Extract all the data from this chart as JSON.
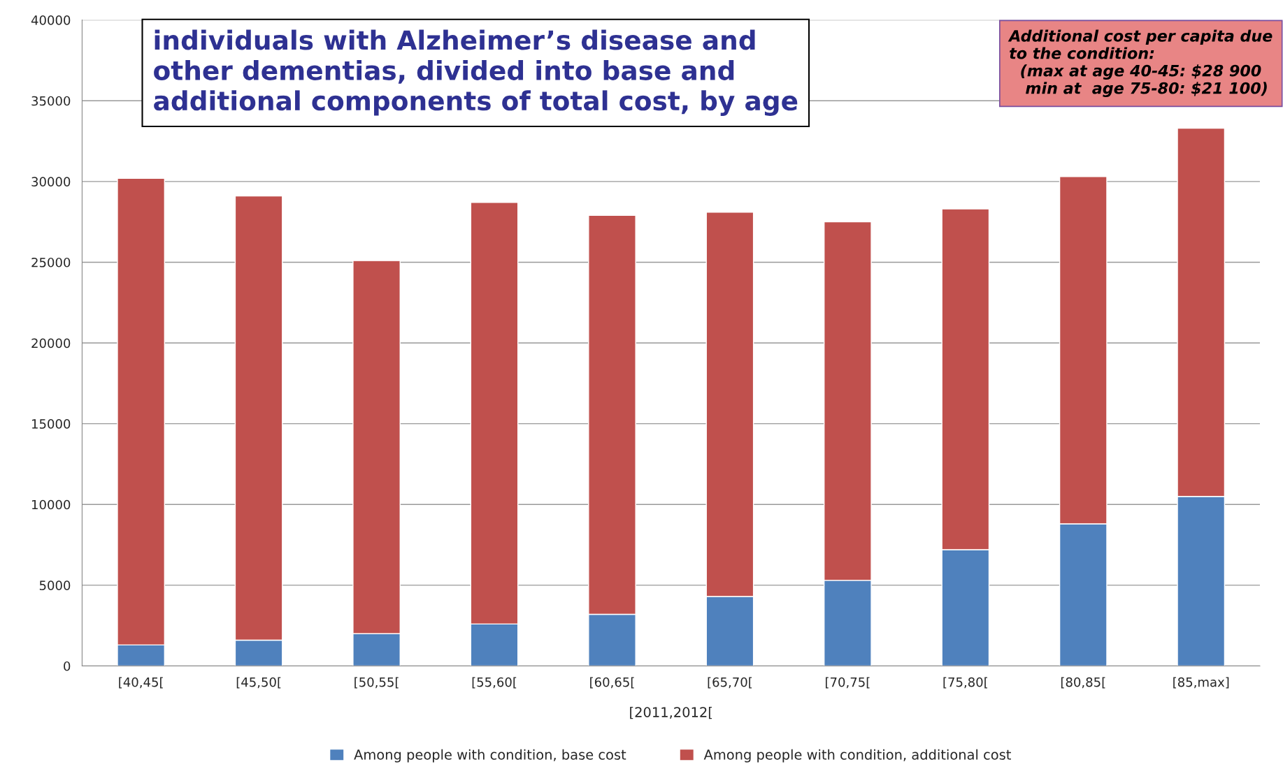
{
  "chart_data": {
    "type": "bar",
    "stacked": true,
    "title": "individuals with Alzheimer’s disease and\nother dementias, divided into base and\nadditional components of total cost, by age",
    "xlabel": "[2011,2012[",
    "categories": [
      "[40,45[",
      "[45,50[",
      "[50,55[",
      "[55,60[",
      "[60,65[",
      "[65,70[",
      "[70,75[",
      "[75,80[",
      "[80,85[",
      "[85,max]"
    ],
    "series": [
      {
        "name": "Among people with condition, base cost",
        "color": "#4f81bd",
        "values": [
          1300,
          1600,
          2000,
          2600,
          3200,
          4300,
          5300,
          7200,
          8800,
          10500
        ]
      },
      {
        "name": "Among people with condition, additional cost",
        "color": "#c0504d",
        "values": [
          28900,
          27500,
          23100,
          26100,
          24700,
          23800,
          22200,
          21100,
          21500,
          22800
        ]
      }
    ],
    "ylim": [
      0,
      40000
    ],
    "yticks": [
      0,
      5000,
      10000,
      15000,
      20000,
      25000,
      30000,
      35000,
      40000
    ],
    "grid": "y",
    "legend": "bottom",
    "annotations": [
      "Additional cost per capita due\nto the condition:\n  (max at age 40-45: $28 900\n   min at  age 75-80: $21 100)"
    ]
  }
}
